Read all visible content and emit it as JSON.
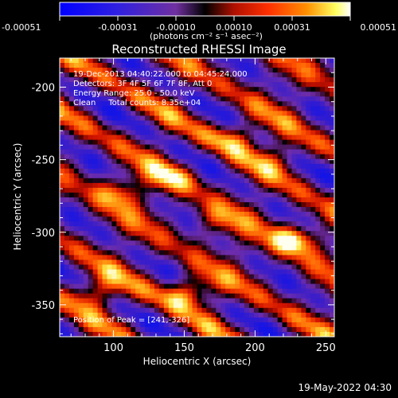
{
  "colorbar": {
    "ticks": [
      "-0.00051",
      "-0.00031",
      "-0.00010",
      "0.00010",
      "0.00031",
      "0.00051"
    ],
    "unit_label": "(photons cm⁻² s⁻¹ asec⁻²)"
  },
  "chart_data": {
    "type": "heatmap",
    "title": "Reconstructed RHESSI Image",
    "xlabel": "Heliocentric X (arcsec)",
    "ylabel": "Heliocentric Y (arcsec)",
    "xlim": [
      62,
      256
    ],
    "ylim": [
      -372,
      -180
    ],
    "xticks": [
      100,
      150,
      200,
      250
    ],
    "yticks": [
      -200,
      -250,
      -300,
      -350
    ],
    "zlim": [
      -0.00051,
      0.00051
    ],
    "annotations": [
      "19-Dec-2013 04:40:22.000 to 04:45:24.000",
      "Detectors: 3F 4F 5F 6F 7F 8F, Att 0",
      "Energy Range: 25.0 - 50.0 keV",
      "Clean     Total counts: 8.35e+04"
    ],
    "peak_label": "Position of Peak = [241,-326]",
    "peak": [
      241,
      -326
    ]
  },
  "footer": {
    "date": "19-May-2022 04:30"
  }
}
